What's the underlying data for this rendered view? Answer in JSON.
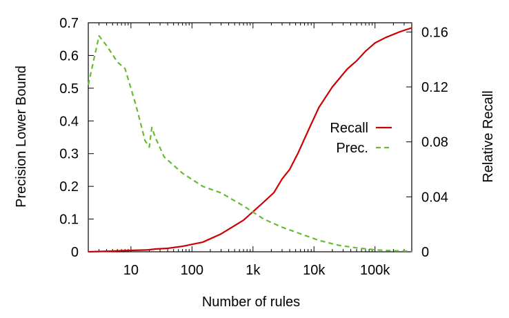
{
  "chart_data": {
    "type": "line",
    "xlabel": "Number of rules",
    "ylabel_left": "Precision Lower Bound",
    "ylabel_right": "Relative Recall",
    "x_scale": "log",
    "xlim": [
      2,
      400000
    ],
    "ylim_left": [
      0,
      0.7
    ],
    "ylim_right": [
      0,
      0.1667
    ],
    "x_ticks": [
      {
        "value": 10,
        "label": "10"
      },
      {
        "value": 100,
        "label": "100"
      },
      {
        "value": 1000,
        "label": "1k"
      },
      {
        "value": 10000,
        "label": "10k"
      },
      {
        "value": 100000,
        "label": "100k"
      }
    ],
    "y_ticks_left": [
      {
        "value": 0,
        "label": "0"
      },
      {
        "value": 0.1,
        "label": "0.1"
      },
      {
        "value": 0.2,
        "label": "0.2"
      },
      {
        "value": 0.3,
        "label": "0.3"
      },
      {
        "value": 0.4,
        "label": "0.4"
      },
      {
        "value": 0.5,
        "label": "0.5"
      },
      {
        "value": 0.6,
        "label": "0.6"
      },
      {
        "value": 0.7,
        "label": "0.7"
      }
    ],
    "y_ticks_right": [
      {
        "value": 0,
        "label": "0"
      },
      {
        "value": 0.04,
        "label": "0.04"
      },
      {
        "value": 0.08,
        "label": "0.08"
      },
      {
        "value": 0.12,
        "label": "0.12"
      },
      {
        "value": 0.16,
        "label": "0.16"
      }
    ],
    "grid": false,
    "legend_position": "right",
    "series": [
      {
        "name": "Recall",
        "axis": "right",
        "color": "#cc0000",
        "style": "solid",
        "points": [
          [
            2,
            0.0
          ],
          [
            5,
            0.0005
          ],
          [
            10,
            0.001
          ],
          [
            18,
            0.0013
          ],
          [
            25,
            0.002
          ],
          [
            40,
            0.0025
          ],
          [
            70,
            0.004
          ],
          [
            150,
            0.007
          ],
          [
            300,
            0.013
          ],
          [
            700,
            0.023
          ],
          [
            1400,
            0.035
          ],
          [
            2200,
            0.043
          ],
          [
            3000,
            0.053
          ],
          [
            4000,
            0.06
          ],
          [
            5500,
            0.072
          ],
          [
            8000,
            0.088
          ],
          [
            12000,
            0.105
          ],
          [
            20000,
            0.12
          ],
          [
            35000,
            0.133
          ],
          [
            50000,
            0.139
          ],
          [
            70000,
            0.146
          ],
          [
            100000,
            0.152
          ],
          [
            150000,
            0.156
          ],
          [
            250000,
            0.16
          ],
          [
            400000,
            0.163
          ]
        ]
      },
      {
        "name": "Prec.",
        "axis": "left",
        "color": "#66bb33",
        "style": "dashed",
        "points": [
          [
            2,
            0.51
          ],
          [
            3,
            0.66
          ],
          [
            4,
            0.63
          ],
          [
            6,
            0.58
          ],
          [
            8,
            0.56
          ],
          [
            12,
            0.45
          ],
          [
            15,
            0.38
          ],
          [
            17,
            0.34
          ],
          [
            20,
            0.32
          ],
          [
            22,
            0.38
          ],
          [
            25,
            0.35
          ],
          [
            35,
            0.29
          ],
          [
            70,
            0.24
          ],
          [
            150,
            0.2
          ],
          [
            300,
            0.18
          ],
          [
            700,
            0.14
          ],
          [
            1500,
            0.1
          ],
          [
            3000,
            0.075
          ],
          [
            6000,
            0.055
          ],
          [
            12000,
            0.035
          ],
          [
            25000,
            0.02
          ],
          [
            50000,
            0.012
          ],
          [
            100000,
            0.006
          ],
          [
            200000,
            0.003
          ],
          [
            400000,
            0.002
          ]
        ]
      }
    ]
  }
}
